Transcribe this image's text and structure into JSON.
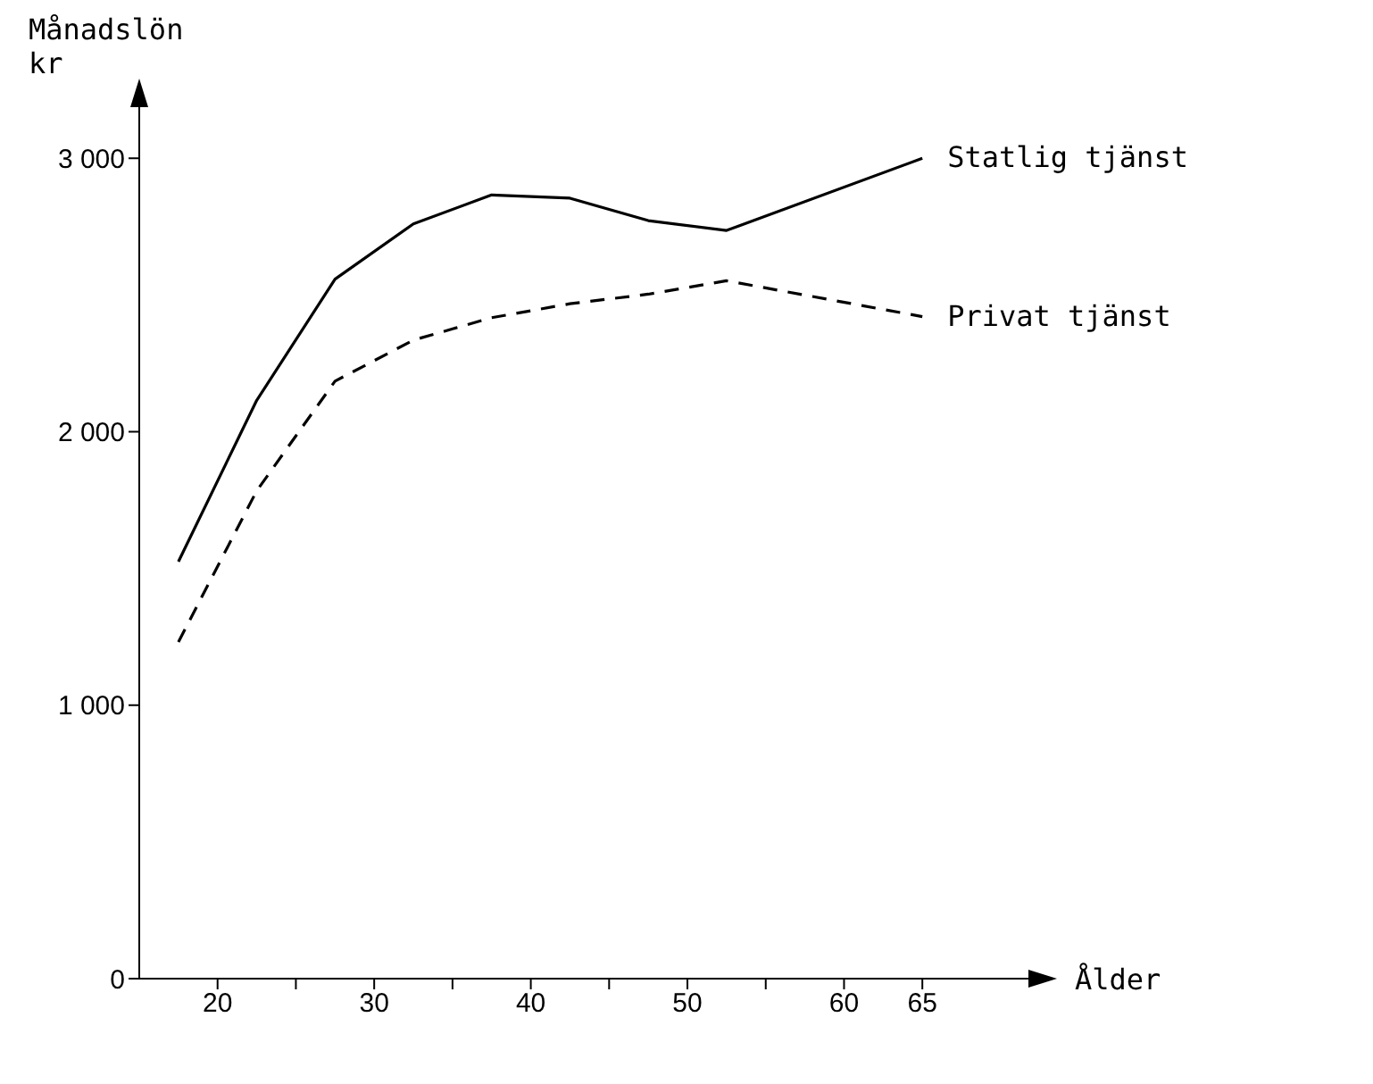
{
  "chart_data": {
    "type": "line",
    "ylabel": "Månadslön kr",
    "xlabel": "Ålder",
    "x": [
      17.5,
      22.5,
      27.5,
      32.5,
      37.5,
      42.5,
      47.5,
      52.5,
      65
    ],
    "series": [
      {
        "name": "Statlig tjänst",
        "color": "#000000",
        "line_style": "solid",
        "values": [
          1525,
          2115,
          2558,
          2760,
          2866,
          2854,
          2772,
          2736,
          3000
        ]
      },
      {
        "name": "Privat tjänst",
        "color": "#000000",
        "line_style": "dashed",
        "values": [
          1231,
          1784,
          2185,
          2335,
          2417,
          2468,
          2503,
          2552,
          2421
        ]
      }
    ],
    "xlim": [
      15,
      72
    ],
    "xticks": [
      20,
      {
        "value": 25,
        "label": null
      },
      30,
      {
        "value": 35,
        "label": null
      },
      40,
      {
        "value": 45,
        "label": null
      },
      50,
      {
        "value": 55,
        "label": null
      },
      60,
      65
    ],
    "ylim": [
      0,
      3200
    ],
    "yticks": [
      {
        "value": 0,
        "label": "0"
      },
      {
        "value": 1000,
        "label": "1 000"
      },
      {
        "value": 2000,
        "label": "2 000"
      },
      {
        "value": 3000,
        "label": "3 000"
      }
    ],
    "marker": "none",
    "legend": false,
    "grid": false
  }
}
